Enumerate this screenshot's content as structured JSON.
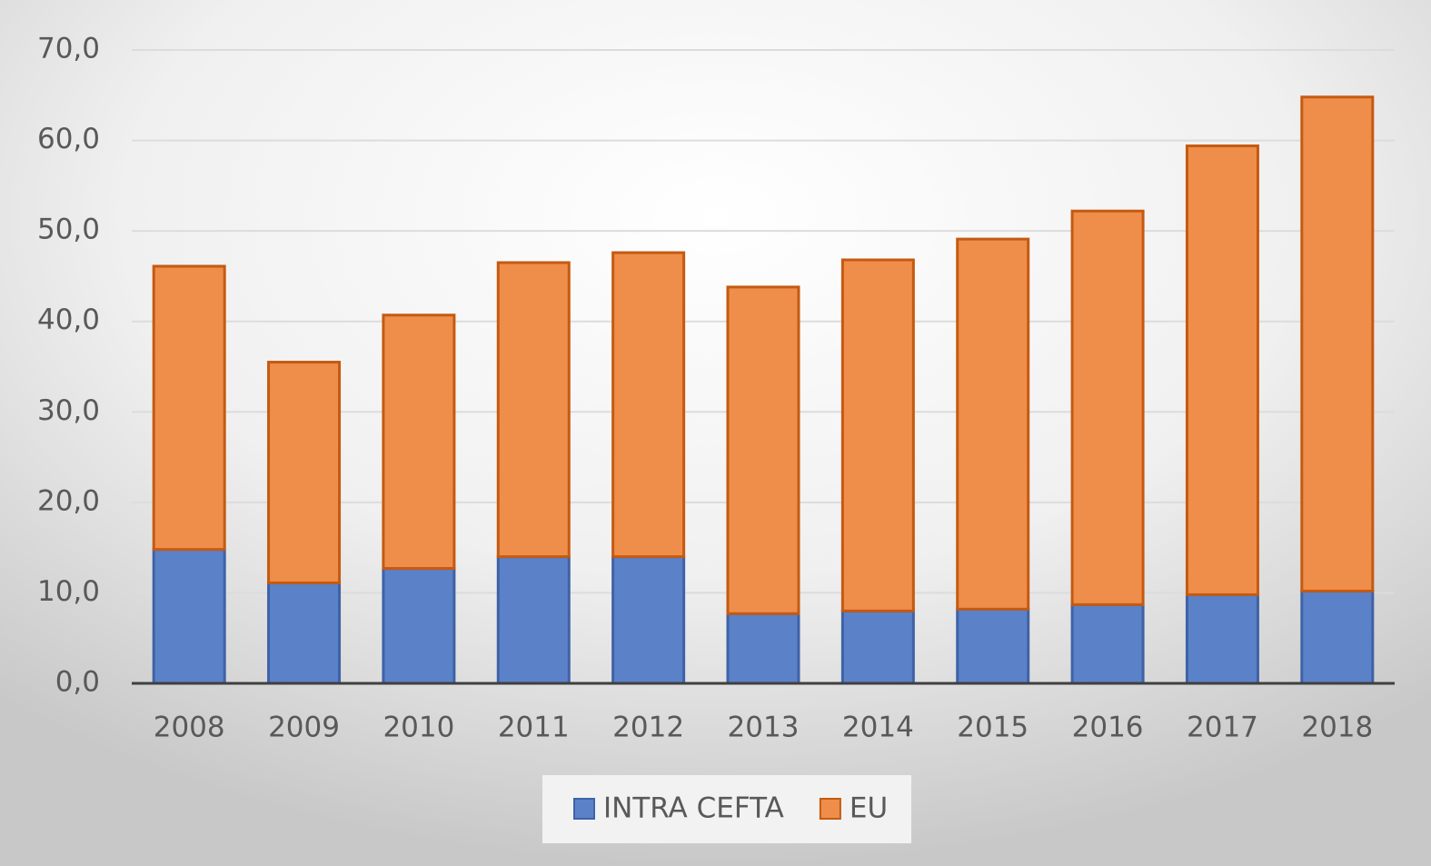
{
  "chart_data": {
    "type": "stacked_bar",
    "categories": [
      "2008",
      "2009",
      "2010",
      "2011",
      "2012",
      "2013",
      "2014",
      "2015",
      "2016",
      "2017",
      "2018"
    ],
    "series": [
      {
        "name": "INTRA CEFTA",
        "color": "#5b82c8",
        "values": [
          14.8,
          11.1,
          12.7,
          14.0,
          14.0,
          7.7,
          8.0,
          8.2,
          8.7,
          9.8,
          10.2
        ]
      },
      {
        "name": "EU",
        "color": "#ee8e4a",
        "values": [
          31.3,
          24.4,
          28.0,
          32.5,
          33.6,
          36.1,
          38.8,
          40.9,
          43.5,
          49.6,
          54.6
        ]
      }
    ],
    "ylim": [
      0,
      70
    ],
    "yticks": [
      {
        "value": 0,
        "label": "0,0"
      },
      {
        "value": 10,
        "label": "10,0"
      },
      {
        "value": 20,
        "label": "20,0"
      },
      {
        "value": 30,
        "label": "30,0"
      },
      {
        "value": 40,
        "label": "40,0"
      },
      {
        "value": 50,
        "label": "50,0"
      },
      {
        "value": 60,
        "label": "60,0"
      },
      {
        "value": 70,
        "label": "70,0"
      }
    ],
    "grid": true,
    "legend": "bottom"
  }
}
